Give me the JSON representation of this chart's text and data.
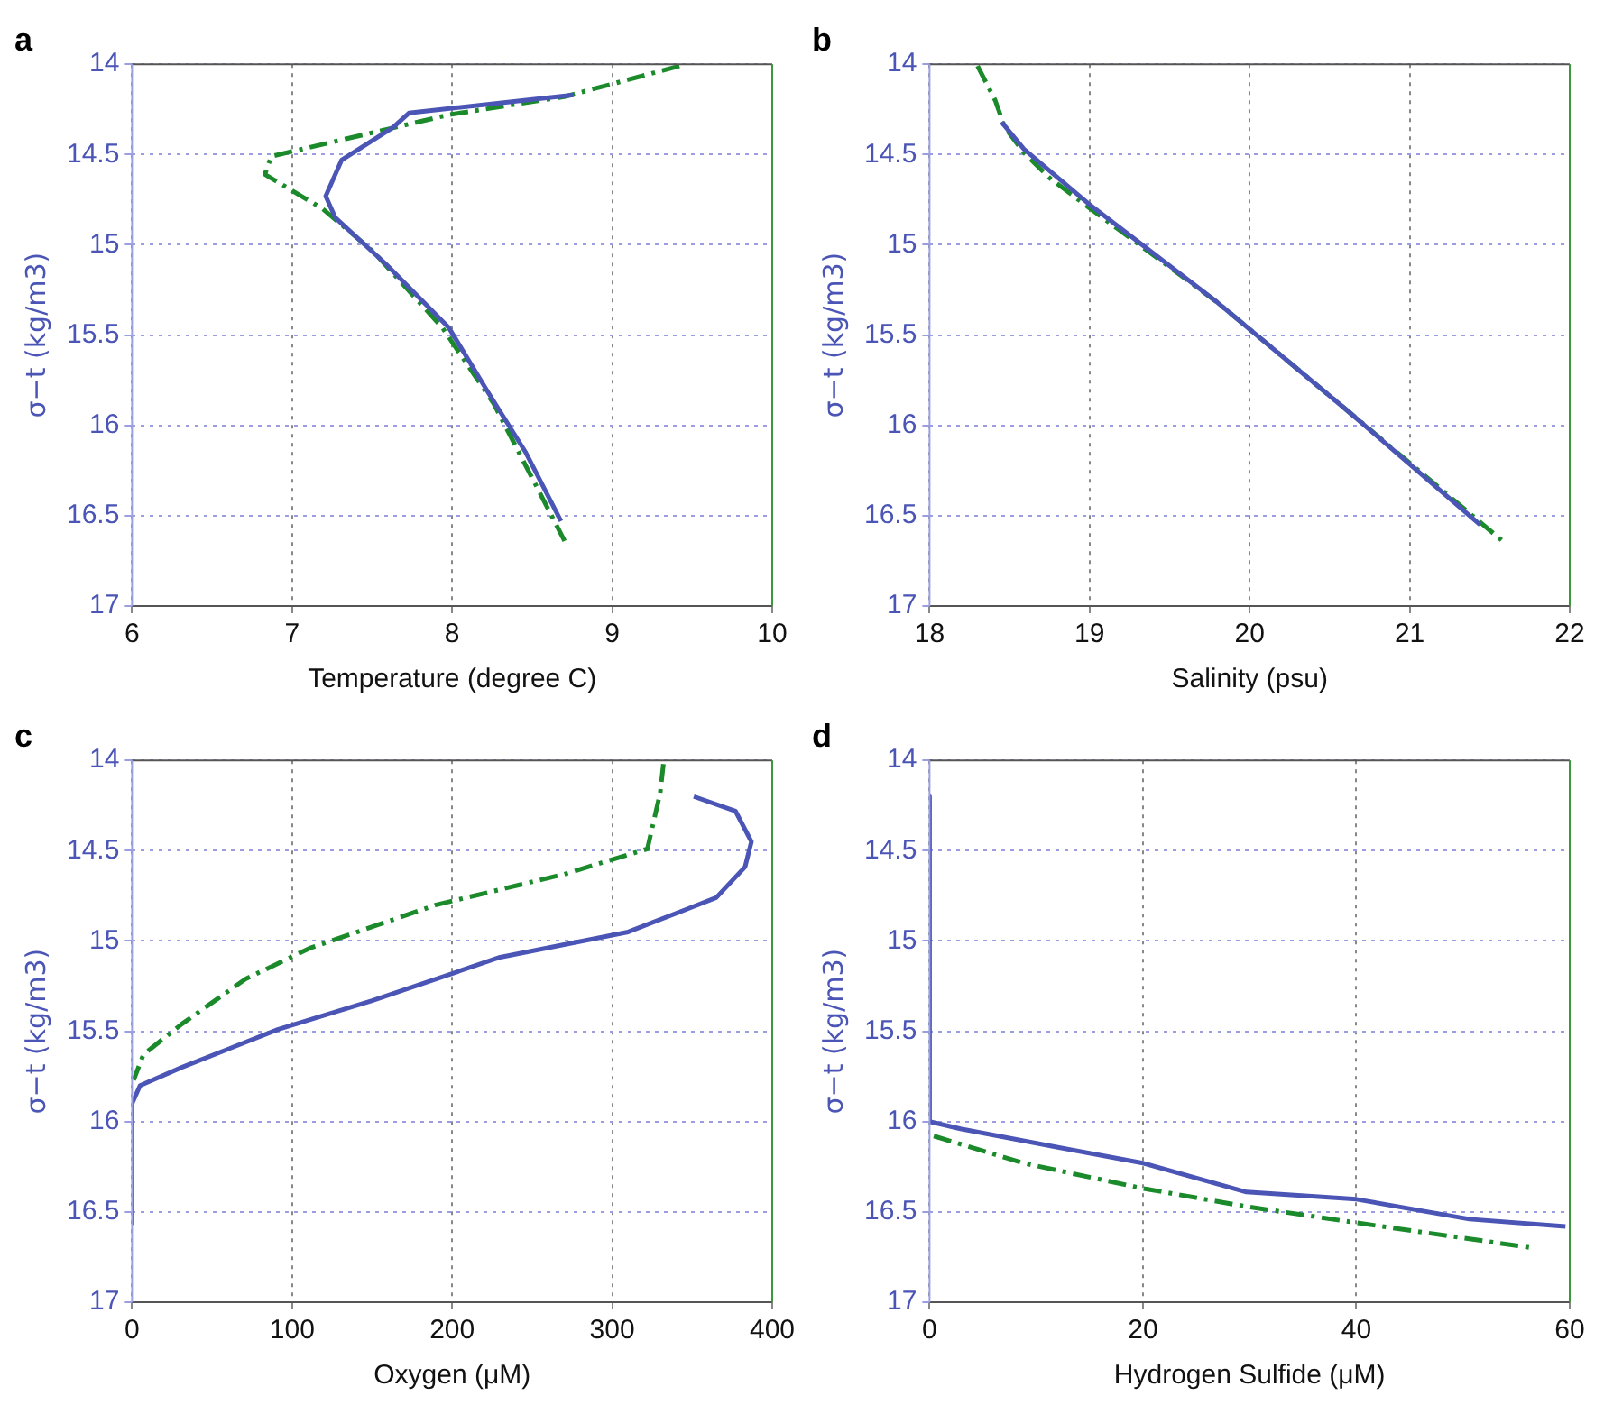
{
  "chart_data": [
    {
      "type": "line",
      "title": "a",
      "xlabel": "Temperature (degree C)",
      "ylabel": "σ−t (kg/m3)",
      "xlim": [
        6,
        10
      ],
      "xticks": [
        6,
        7,
        8,
        9,
        10
      ],
      "ylim": [
        17,
        14
      ],
      "yticks": [
        14,
        14.5,
        15,
        15.5,
        16,
        16.5,
        17
      ],
      "grid": true,
      "series": [
        {
          "color": "#4a55b5",
          "line_style": "solid",
          "x": [
            8.76,
            7.73,
            7.63,
            7.31,
            7.21,
            7.27,
            7.59,
            7.98,
            8.22,
            8.46,
            8.68
          ],
          "values": [
            14.17,
            14.27,
            14.35,
            14.53,
            14.73,
            14.85,
            15.11,
            15.46,
            15.81,
            16.15,
            16.53
          ]
        },
        {
          "color": "#1a8a2a",
          "line_style": "dashed",
          "x": [
            9.42,
            8.7,
            7.98,
            6.87,
            6.83,
            7.19,
            7.51,
            7.94,
            8.26,
            8.54,
            8.72
          ],
          "values": [
            14.01,
            14.18,
            14.28,
            14.51,
            14.61,
            14.8,
            15.04,
            15.46,
            15.88,
            16.36,
            16.67
          ]
        }
      ]
    },
    {
      "type": "line",
      "title": "b",
      "xlabel": "Salinity (psu)",
      "ylabel": "σ−t (kg/m3)",
      "xlim": [
        18,
        22
      ],
      "xticks": [
        18,
        19,
        20,
        21,
        22
      ],
      "ylim": [
        17,
        14
      ],
      "yticks": [
        14,
        14.5,
        15,
        15.5,
        16,
        16.5,
        17
      ],
      "grid": true,
      "series": [
        {
          "color": "#4a55b5",
          "line_style": "solid",
          "x": [
            18.45,
            18.59,
            18.99,
            19.8,
            20.6,
            21.44
          ],
          "values": [
            14.32,
            14.47,
            14.77,
            15.32,
            15.91,
            16.55
          ]
        },
        {
          "color": "#1a8a2a",
          "line_style": "dashed",
          "x": [
            18.3,
            18.41,
            18.47,
            18.59,
            18.75,
            18.99,
            19.8,
            20.6,
            21.58
          ],
          "values": [
            14.01,
            14.2,
            14.35,
            14.49,
            14.63,
            14.79,
            15.32,
            15.91,
            16.64
          ]
        }
      ]
    },
    {
      "type": "line",
      "title": "c",
      "xlabel": "Oxygen (μM)",
      "ylabel": "σ−t (kg/m3)",
      "xlim": [
        0,
        400
      ],
      "xticks": [
        0,
        100,
        200,
        300,
        400
      ],
      "ylim": [
        17,
        14
      ],
      "yticks": [
        14,
        14.5,
        15,
        15.5,
        16,
        16.5,
        17
      ],
      "grid": true,
      "series": [
        {
          "color": "#4a55b5",
          "line_style": "solid",
          "x": [
            351,
            377,
            387,
            383,
            365,
            310,
            230,
            150,
            91,
            31,
            5,
            0,
            0
          ],
          "values": [
            14.2,
            14.28,
            14.45,
            14.59,
            14.76,
            14.95,
            15.09,
            15.33,
            15.49,
            15.7,
            15.8,
            15.9,
            16.56
          ]
        },
        {
          "color": "#1a8a2a",
          "line_style": "dashed",
          "x": [
            332,
            330,
            322,
            270,
            190,
            111,
            71,
            31,
            7,
            1
          ],
          "values": [
            14.02,
            14.18,
            14.49,
            14.63,
            14.8,
            15.04,
            15.21,
            15.46,
            15.63,
            15.77
          ]
        }
      ]
    },
    {
      "type": "line",
      "title": "d",
      "xlabel": "Hydrogen Sulfide (μM)",
      "ylabel": "σ−t (kg/m3)",
      "xlim": [
        0,
        60
      ],
      "xticks": [
        0,
        20,
        40,
        60
      ],
      "ylim": [
        17,
        14
      ],
      "yticks": [
        14,
        14.5,
        15,
        15.5,
        16,
        16.5,
        17
      ],
      "grid": true,
      "series": [
        {
          "color": "#4a55b5",
          "line_style": "solid",
          "x": [
            0,
            0,
            2.9,
            11.8,
            20,
            29.7,
            40,
            50.6,
            59.6
          ],
          "values": [
            14.2,
            16.0,
            16.04,
            16.14,
            16.23,
            16.39,
            16.43,
            16.54,
            16.58
          ]
        },
        {
          "color": "#1a8a2a",
          "line_style": "dashed",
          "x": [
            0.4,
            8.8,
            20,
            29.7,
            40,
            56.6
          ],
          "values": [
            16.08,
            16.23,
            16.37,
            16.47,
            16.56,
            16.7
          ]
        }
      ]
    }
  ]
}
